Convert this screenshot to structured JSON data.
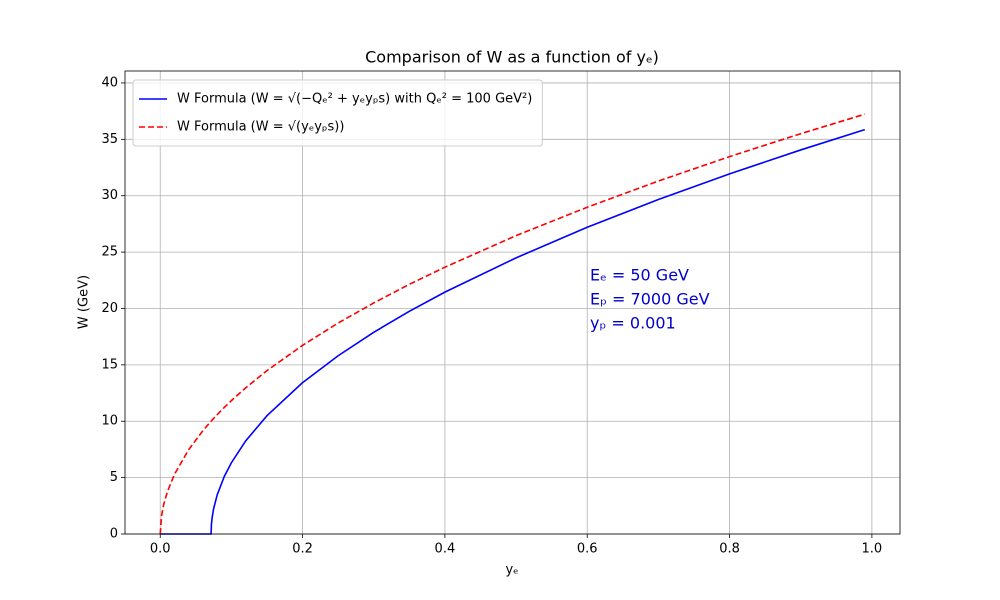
{
  "chart_data": {
    "type": "line",
    "title": "Comparison of W as a function of yₑ)",
    "xlabel": "yₑ",
    "ylabel": "W (GeV)",
    "x": [
      0,
      0.002,
      0.005,
      0.01,
      0.02,
      0.04,
      0.06,
      0.07,
      0.0714,
      0.072,
      0.073,
      0.075,
      0.08,
      0.09,
      0.1,
      0.12,
      0.15,
      0.2,
      0.25,
      0.3,
      0.35,
      0.4,
      0.5,
      0.6,
      0.7,
      0.8,
      0.9,
      0.99
    ],
    "series": [
      {
        "name": "W Formula (W = √(−Qₑ² + yₑyₚs) with Qₑ² = 100 GeV²)",
        "color": "#0000ff",
        "linestyle": "solid",
        "values": [
          0,
          0,
          0,
          0,
          0,
          0,
          0,
          0,
          0,
          0.89,
          1.48,
          2.24,
          3.46,
          5.1,
          6.32,
          8.25,
          10.49,
          13.42,
          15.81,
          17.89,
          19.75,
          21.45,
          24.49,
          27.2,
          29.66,
          31.94,
          34.06,
          35.86
        ]
      },
      {
        "name": "W Formula (W = √(yₑyₚs))",
        "color": "#ff0000",
        "linestyle": "dashed",
        "values": [
          0,
          1.67,
          2.65,
          3.74,
          5.29,
          7.48,
          9.17,
          9.9,
          10.0,
          10.04,
          10.11,
          10.25,
          10.58,
          11.22,
          11.83,
          12.96,
          14.49,
          16.73,
          18.71,
          20.49,
          22.14,
          23.66,
          26.46,
          28.98,
          31.3,
          33.47,
          35.5,
          37.23
        ]
      }
    ],
    "annotations": [
      "Eₑ = 50 GeV",
      "Eₚ = 7000 GeV",
      "yₚ = 0.001"
    ],
    "annotation_color": "#0000cc",
    "xlim": [
      -0.0495,
      1.0395
    ],
    "ylim": [
      0,
      41.06
    ],
    "xticks": [
      {
        "value": 0,
        "label": "0.0"
      },
      0.2,
      0.4,
      0.6,
      0.8,
      {
        "value": 1,
        "label": "1.0"
      }
    ],
    "yticks": [
      0,
      5,
      10,
      15,
      20,
      25,
      30,
      35,
      40
    ],
    "grid": true,
    "legend": "upper left"
  }
}
